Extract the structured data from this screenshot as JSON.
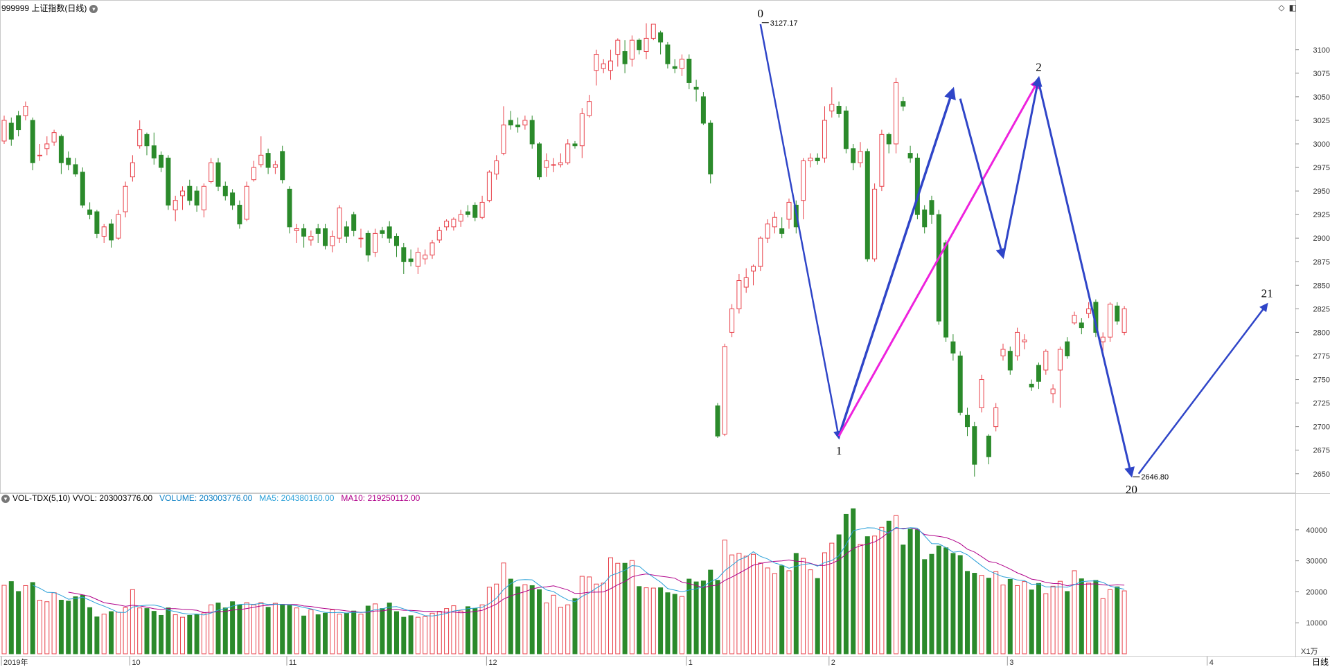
{
  "header": {
    "title": "999999 上证指数(日线)"
  },
  "volume_header": {
    "indicator": "VOL-TDX(5,10)",
    "vvol_label": "VVOL:",
    "vvol_value": "203003776.00",
    "volume_label": "VOLUME:",
    "volume_value": "203003776.00",
    "ma5_label": "MA5:",
    "ma5_value": "204380160.00",
    "ma10_label": "MA10:",
    "ma10_value": "219250112.00"
  },
  "period_tab": "日线",
  "volume_unit": "X1万",
  "colors": {
    "up": "#e8414a",
    "down": "#2b8a2b",
    "wave_blue": "#2f45c8",
    "wave_magenta": "#ee22dd",
    "volume_label": "#0a7fc4",
    "ma5": "#2aa0d8",
    "ma10": "#b0008a",
    "grid": "#d8d8d8"
  },
  "chart_data": {
    "type": "candlestick",
    "price_axis": {
      "ylim": [
        2630,
        3138
      ],
      "ticks": [
        2650,
        2675,
        2700,
        2725,
        2750,
        2775,
        2800,
        2825,
        2850,
        2875,
        2900,
        2925,
        2950,
        2975,
        3000,
        3025,
        3050,
        3075,
        3100
      ]
    },
    "volume_axis": {
      "ylim": [
        0,
        48000
      ],
      "ticks": [
        10000,
        20000,
        30000,
        40000
      ],
      "unit": "X1万"
    },
    "x_labels": [
      {
        "label": "2019年",
        "index": 0
      },
      {
        "label": "10",
        "index": 18
      },
      {
        "label": "11",
        "index": 40
      },
      {
        "label": "12",
        "index": 68
      },
      {
        "label": "1",
        "index": 96
      },
      {
        "label": "2",
        "index": 116
      },
      {
        "label": "3",
        "index": 141
      },
      {
        "label": "4",
        "index": 169
      }
    ],
    "candles": [
      [
        3003,
        3025,
        3030,
        3000,
        22100
      ],
      [
        3022,
        3005,
        3028,
        2998,
        23300
      ],
      [
        3030,
        3015,
        3035,
        3008,
        20100
      ],
      [
        3030,
        3040,
        3045,
        3025,
        22000
      ],
      [
        3025,
        2980,
        3028,
        2972,
        23000
      ],
      [
        2988,
        2988,
        3000,
        2982,
        17300
      ],
      [
        2995,
        3000,
        3008,
        2988,
        16800
      ],
      [
        3002,
        3012,
        3015,
        2998,
        19700
      ],
      [
        3008,
        2980,
        3010,
        2968,
        17300
      ],
      [
        2985,
        2978,
        2992,
        2972,
        17000
      ],
      [
        2978,
        2968,
        2985,
        2965,
        18400
      ],
      [
        2970,
        2935,
        2975,
        2932,
        18900
      ],
      [
        2930,
        2925,
        2938,
        2920,
        14900
      ],
      [
        2928,
        2905,
        2930,
        2900,
        11900
      ],
      [
        2902,
        2912,
        2915,
        2895,
        12800
      ],
      [
        2915,
        2898,
        2920,
        2890,
        13600
      ],
      [
        2900,
        2925,
        2930,
        2898,
        13400
      ],
      [
        2928,
        2955,
        2960,
        2922,
        14900
      ],
      [
        2965,
        2980,
        2988,
        2960,
        20700
      ],
      [
        2998,
        3015,
        3025,
        2995,
        14800
      ],
      [
        3010,
        2998,
        3012,
        2988,
        14600
      ],
      [
        2998,
        2985,
        3012,
        2978,
        13700
      ],
      [
        2988,
        2975,
        2992,
        2970,
        12400
      ],
      [
        2985,
        2935,
        2988,
        2930,
        14800
      ],
      [
        2930,
        2940,
        2945,
        2918,
        12600
      ],
      [
        2945,
        2950,
        2955,
        2930,
        11800
      ],
      [
        2955,
        2940,
        2962,
        2935,
        12400
      ],
      [
        2950,
        2935,
        2955,
        2928,
        12600
      ],
      [
        2930,
        2955,
        2958,
        2922,
        13200
      ],
      [
        2960,
        2980,
        2985,
        2958,
        15800
      ],
      [
        2980,
        2955,
        2985,
        2950,
        16400
      ],
      [
        2955,
        2945,
        2960,
        2940,
        14800
      ],
      [
        2948,
        2935,
        2952,
        2930,
        16800
      ],
      [
        2935,
        2915,
        2940,
        2910,
        15800
      ],
      [
        2920,
        2955,
        2960,
        2918,
        16500
      ],
      [
        2962,
        2975,
        2982,
        2960,
        15800
      ],
      [
        2978,
        2988,
        3008,
        2975,
        16500
      ],
      [
        2990,
        2975,
        2995,
        2968,
        15000
      ],
      [
        2975,
        2978,
        2982,
        2968,
        16300
      ],
      [
        2992,
        2962,
        2998,
        2958,
        15800
      ],
      [
        2952,
        2912,
        2955,
        2905,
        15600
      ],
      [
        2908,
        2910,
        2915,
        2895,
        14800
      ],
      [
        2910,
        2902,
        2915,
        2890,
        12200
      ],
      [
        2898,
        2902,
        2908,
        2892,
        14200
      ],
      [
        2910,
        2905,
        2915,
        2895,
        12600
      ],
      [
        2910,
        2892,
        2915,
        2888,
        13100
      ],
      [
        2892,
        2902,
        2908,
        2885,
        14200
      ],
      [
        2900,
        2932,
        2935,
        2895,
        12800
      ],
      [
        2912,
        2902,
        2918,
        2895,
        13100
      ],
      [
        2925,
        2908,
        2928,
        2902,
        13800
      ],
      [
        2900,
        2900,
        2910,
        2890,
        12800
      ],
      [
        2905,
        2882,
        2908,
        2875,
        15400
      ],
      [
        2885,
        2905,
        2910,
        2880,
        16100
      ],
      [
        2908,
        2905,
        2912,
        2900,
        14600
      ],
      [
        2912,
        2900,
        2918,
        2895,
        16400
      ],
      [
        2902,
        2892,
        2905,
        2880,
        13600
      ],
      [
        2890,
        2875,
        2895,
        2862,
        11800
      ],
      [
        2878,
        2875,
        2888,
        2870,
        12300
      ],
      [
        2870,
        2885,
        2890,
        2862,
        11800
      ],
      [
        2878,
        2882,
        2888,
        2872,
        12000
      ],
      [
        2882,
        2895,
        2898,
        2878,
        13100
      ],
      [
        2898,
        2908,
        2912,
        2895,
        13700
      ],
      [
        2912,
        2918,
        2920,
        2908,
        14600
      ],
      [
        2912,
        2920,
        2922,
        2908,
        15500
      ],
      [
        2918,
        2925,
        2930,
        2912,
        13800
      ],
      [
        2928,
        2925,
        2935,
        2922,
        15200
      ],
      [
        2935,
        2922,
        2938,
        2918,
        14600
      ],
      [
        2922,
        2938,
        2945,
        2920,
        15800
      ],
      [
        2940,
        2970,
        2972,
        2938,
        21500
      ],
      [
        2968,
        2982,
        2988,
        2962,
        22500
      ],
      [
        2990,
        3020,
        3040,
        2988,
        29300
      ],
      [
        3025,
        3020,
        3035,
        3015,
        24100
      ],
      [
        3020,
        3018,
        3028,
        3012,
        21600
      ],
      [
        3020,
        3025,
        3030,
        3015,
        22300
      ],
      [
        3025,
        3000,
        3030,
        2995,
        22000
      ],
      [
        3000,
        2965,
        3002,
        2962,
        20700
      ],
      [
        2975,
        2982,
        2990,
        2965,
        16400
      ],
      [
        2978,
        2978,
        2985,
        2970,
        18900
      ],
      [
        2978,
        2980,
        2990,
        2975,
        15000
      ],
      [
        2980,
        3000,
        3005,
        2978,
        15800
      ],
      [
        3000,
        2998,
        3003,
        2995,
        17800
      ],
      [
        2998,
        3032,
        3038,
        2985,
        25000
      ],
      [
        3030,
        3045,
        3052,
        3028,
        24800
      ],
      [
        3078,
        3095,
        3100,
        3062,
        22500
      ],
      [
        3080,
        3085,
        3090,
        3075,
        22800
      ],
      [
        3078,
        3088,
        3100,
        3068,
        31000
      ],
      [
        3095,
        3110,
        3112,
        3082,
        29200
      ],
      [
        3098,
        3085,
        3110,
        3075,
        29200
      ],
      [
        3090,
        3110,
        3115,
        3082,
        30100
      ],
      [
        3110,
        3100,
        3112,
        3095,
        21700
      ],
      [
        3098,
        3112,
        3128,
        3090,
        21300
      ],
      [
        3112,
        3127,
        3127,
        3110,
        21200
      ],
      [
        3118,
        3108,
        3120,
        3095,
        21300
      ],
      [
        3105,
        3085,
        3108,
        3080,
        19700
      ],
      [
        3082,
        3080,
        3090,
        3075,
        19200
      ],
      [
        3080,
        3090,
        3095,
        3072,
        18500
      ],
      [
        3090,
        3065,
        3095,
        3058,
        24100
      ],
      [
        3060,
        3058,
        3068,
        3045,
        23200
      ],
      [
        3050,
        3022,
        3055,
        3020,
        23500
      ],
      [
        3022,
        2968,
        3025,
        2958,
        27000
      ],
      [
        2722,
        2690,
        2725,
        2688,
        23700
      ],
      [
        2692,
        2785,
        2788,
        2690,
        36700
      ],
      [
        2800,
        2825,
        2830,
        2795,
        31900
      ],
      [
        2825,
        2855,
        2862,
        2820,
        32400
      ],
      [
        2848,
        2858,
        2868,
        2842,
        31500
      ],
      [
        2865,
        2870,
        2872,
        2850,
        32100
      ],
      [
        2870,
        2900,
        2902,
        2865,
        29300
      ],
      [
        2900,
        2915,
        2920,
        2895,
        27700
      ],
      [
        2912,
        2922,
        2928,
        2905,
        25900
      ],
      [
        2910,
        2905,
        2922,
        2900,
        28400
      ],
      [
        2920,
        2938,
        2942,
        2910,
        26800
      ],
      [
        2935,
        2912,
        2940,
        2905,
        32400
      ],
      [
        2940,
        2982,
        2985,
        2920,
        30800
      ],
      [
        2982,
        2985,
        2990,
        2975,
        27100
      ],
      [
        2985,
        2982,
        2990,
        2978,
        24300
      ],
      [
        2985,
        3025,
        3040,
        2980,
        32600
      ],
      [
        3035,
        3042,
        3060,
        3028,
        35700
      ],
      [
        3040,
        3032,
        3045,
        3028,
        38400
      ],
      [
        3035,
        2995,
        3040,
        2990,
        45000
      ],
      [
        2995,
        2980,
        3000,
        2972,
        46800
      ],
      [
        2980,
        2992,
        3002,
        2975,
        35300
      ],
      [
        2992,
        2878,
        2995,
        2875,
        37800
      ],
      [
        2878,
        2952,
        2958,
        2875,
        38000
      ],
      [
        2955,
        3010,
        3015,
        2950,
        40800
      ],
      [
        3010,
        3000,
        3012,
        2990,
        42800
      ],
      [
        3000,
        3065,
        3070,
        2990,
        44600
      ],
      [
        3045,
        3040,
        3050,
        3035,
        35100
      ],
      [
        2990,
        2985,
        2998,
        2980,
        40200
      ],
      [
        2985,
        2925,
        2990,
        2920,
        40000
      ],
      [
        2930,
        2912,
        2935,
        2905,
        30400
      ],
      [
        2940,
        2925,
        2945,
        2915,
        32100
      ],
      [
        2925,
        2812,
        2930,
        2808,
        34800
      ],
      [
        2895,
        2795,
        2898,
        2790,
        34200
      ],
      [
        2790,
        2778,
        2798,
        2770,
        32400
      ],
      [
        2775,
        2715,
        2780,
        2712,
        31700
      ],
      [
        2712,
        2700,
        2720,
        2690,
        26600
      ],
      [
        2700,
        2660,
        2705,
        2647,
        26000
      ],
      [
        2720,
        2750,
        2755,
        2715,
        25300
      ],
      [
        2690,
        2668,
        2692,
        2660,
        24400
      ],
      [
        2700,
        2720,
        2725,
        2695,
        26500
      ],
      [
        2775,
        2782,
        2788,
        2770,
        22200
      ],
      [
        2780,
        2760,
        2785,
        2755,
        24000
      ],
      [
        2775,
        2800,
        2805,
        2770,
        22000
      ],
      [
        2790,
        2792,
        2798,
        2782,
        23300
      ],
      [
        2745,
        2742,
        2750,
        2738,
        20600
      ],
      [
        2765,
        2748,
        2768,
        2740,
        22700
      ],
      [
        2760,
        2780,
        2782,
        2755,
        19400
      ],
      [
        2735,
        2740,
        2745,
        2725,
        21800
      ],
      [
        2760,
        2782,
        2785,
        2720,
        23400
      ],
      [
        2790,
        2775,
        2795,
        2772,
        20100
      ],
      [
        2810,
        2818,
        2822,
        2808,
        26800
      ],
      [
        2810,
        2805,
        2815,
        2798,
        24200
      ],
      [
        2820,
        2825,
        2832,
        2815,
        22800
      ],
      [
        2832,
        2800,
        2835,
        2795,
        23700
      ],
      [
        2790,
        2795,
        2800,
        2780,
        17800
      ],
      [
        2795,
        2830,
        2832,
        2790,
        20700
      ],
      [
        2828,
        2812,
        2832,
        2808,
        21600
      ],
      [
        2800,
        2825,
        2828,
        2797,
        20300
      ]
    ],
    "wave_labels": [
      {
        "label": "0",
        "index": 106,
        "price": 3127.17,
        "note": "3127.17",
        "pos": "top"
      },
      {
        "label": "1",
        "index": 117,
        "price": 2688,
        "pos": "bottom"
      },
      {
        "label": "2",
        "index": 145,
        "price": 3070,
        "pos": "top"
      },
      {
        "label": "20",
        "index": 158,
        "price": 2646.8,
        "note": "2646.80",
        "pos": "bottom"
      },
      {
        "label": "21",
        "index": 177,
        "price": 2830,
        "pos": "top"
      }
    ],
    "wave_lines": [
      {
        "from": [
          106,
          3127
        ],
        "to": [
          117,
          2688
        ],
        "color": "wave_blue",
        "arrow": true,
        "width": 2.5
      },
      {
        "from": [
          117,
          2690
        ],
        "to": [
          133,
          3058
        ],
        "color": "wave_blue",
        "arrow": true,
        "width": 3.5
      },
      {
        "from": [
          117,
          2690
        ],
        "to": [
          145,
          3068
        ],
        "color": "wave_magenta",
        "arrow": true,
        "width": 3
      },
      {
        "from": [
          134,
          3048
        ],
        "to": [
          140,
          2880
        ],
        "color": "wave_blue",
        "arrow": true,
        "width": 3
      },
      {
        "from": [
          140,
          2880
        ],
        "to": [
          145,
          3070
        ],
        "color": "wave_blue",
        "arrow": true,
        "width": 3
      },
      {
        "from": [
          145,
          3065
        ],
        "to": [
          158,
          2648
        ],
        "color": "wave_blue",
        "arrow": true,
        "width": 3
      },
      {
        "from": [
          159,
          2650
        ],
        "to": [
          177,
          2830
        ],
        "color": "wave_blue",
        "arrow": true,
        "width": 2.5
      }
    ]
  }
}
